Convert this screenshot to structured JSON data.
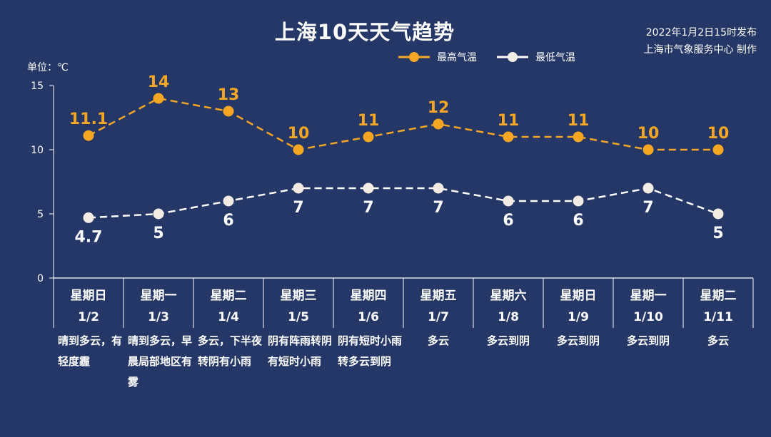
{
  "header": {
    "title": "上海10天天气趋势",
    "issued": "2022年1月2日15时发布",
    "producer": "上海市气象服务中心 制作"
  },
  "unit": "单位：℃",
  "legend": {
    "high": "最高气温",
    "low": "最低气温"
  },
  "colors": {
    "background": "#253766",
    "high": "#f5a623",
    "low": "#ffffff",
    "axis": "#ffffff"
  },
  "chart_data": {
    "type": "line",
    "title": "上海10天天气趋势",
    "ylim": [
      0,
      15
    ],
    "yticks": [
      "0",
      "5",
      "10",
      "15"
    ],
    "categories": [
      "1/2",
      "1/3",
      "1/4",
      "1/5",
      "1/6",
      "1/7",
      "1/8",
      "1/9",
      "1/10",
      "1/11"
    ],
    "weekdays": [
      "星期日",
      "星期一",
      "星期二",
      "星期三",
      "星期四",
      "星期五",
      "星期六",
      "星期日",
      "星期一",
      "星期二"
    ],
    "weather": [
      "晴到多云，有轻度霾",
      "晴到多云，早晨局部地区有雾",
      "多云，下半夜转阴有小雨",
      "阴有阵雨转阴有短时小雨",
      "阴有短时小雨转多云到阴",
      "多云",
      "多云到阴",
      "多云到阴",
      "多云到阴",
      "多云"
    ],
    "series": [
      {
        "name": "最高气温",
        "values": [
          11.1,
          14,
          13,
          10,
          11,
          12,
          11,
          11,
          10,
          10
        ],
        "labels": [
          "11.1",
          "14",
          "13",
          "10",
          "11",
          "12",
          "11",
          "11",
          "10",
          "10"
        ]
      },
      {
        "name": "最低气温",
        "values": [
          4.7,
          5,
          6,
          7,
          7,
          7,
          6,
          6,
          7,
          5
        ],
        "labels": [
          "4.7",
          "5",
          "6",
          "7",
          "7",
          "7",
          "6",
          "6",
          "7",
          "5"
        ]
      }
    ]
  }
}
